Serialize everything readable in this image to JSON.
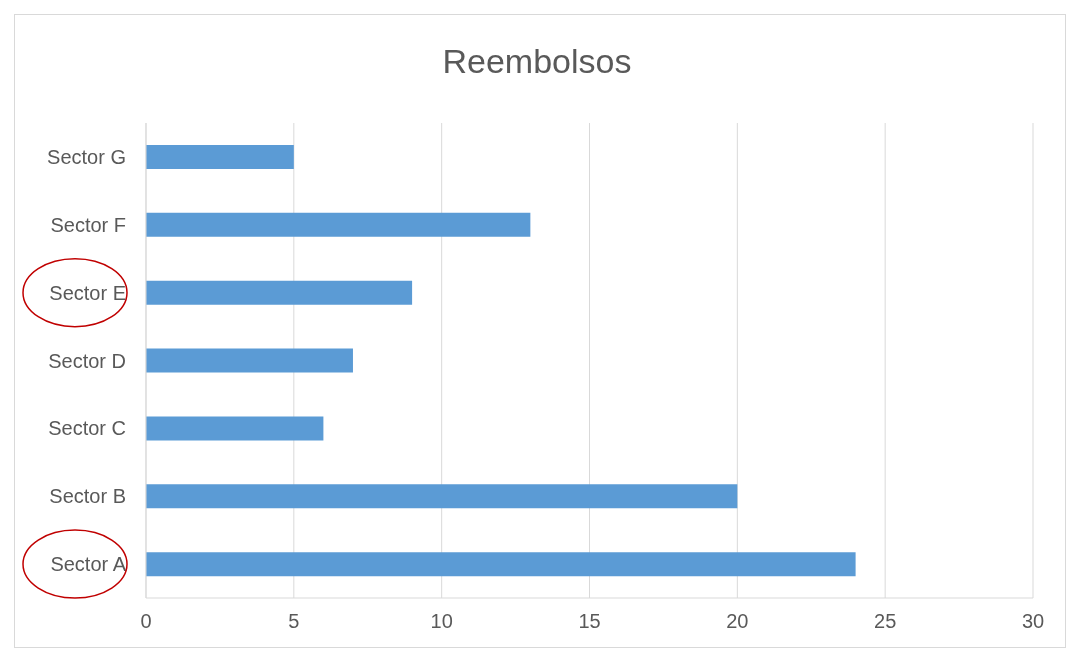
{
  "chart_data": {
    "type": "bar",
    "orientation": "horizontal",
    "title": "Reembolsos",
    "categories": [
      "Sector G",
      "Sector F",
      "Sector E",
      "Sector D",
      "Sector C",
      "Sector B",
      "Sector A"
    ],
    "values": [
      5,
      13,
      9,
      7,
      6,
      20,
      24
    ],
    "color": "#5b9bd5",
    "xlim": [
      0,
      30
    ],
    "xticks": [
      0,
      5,
      10,
      15,
      20,
      25,
      30
    ],
    "grid": "x"
  }
}
